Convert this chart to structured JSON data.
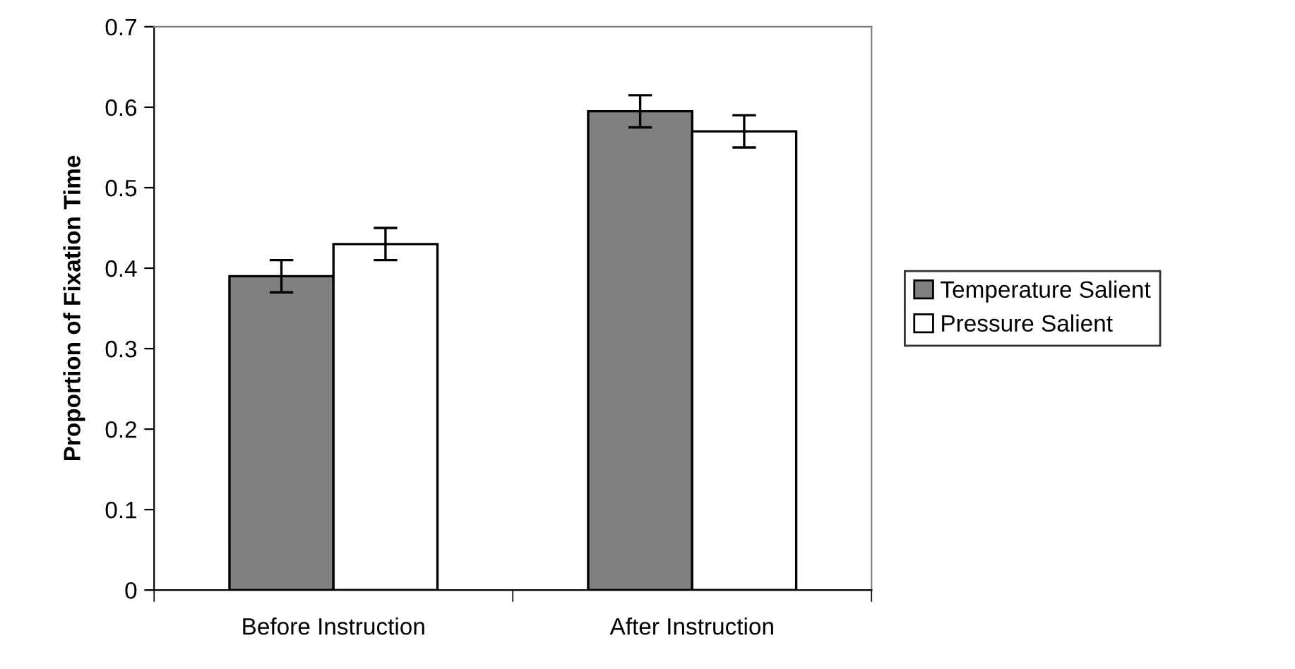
{
  "chart_data": {
    "type": "bar",
    "ylabel": "Proportion of Fixation Time",
    "categories": [
      "Before Instruction",
      "After Instruction"
    ],
    "series": [
      {
        "name": "Temperature Salient",
        "color": "#808080",
        "values": [
          0.39,
          0.595
        ],
        "errors": [
          0.02,
          0.02
        ]
      },
      {
        "name": "Pressure Salient",
        "color": "#ffffff",
        "values": [
          0.43,
          0.57
        ],
        "errors": [
          0.02,
          0.02
        ]
      }
    ],
    "ylim": [
      0,
      0.7
    ],
    "yticks": [
      0,
      0.1,
      0.2,
      0.3,
      0.4,
      0.5,
      0.6,
      0.7
    ],
    "grid": false,
    "legend": "right"
  }
}
